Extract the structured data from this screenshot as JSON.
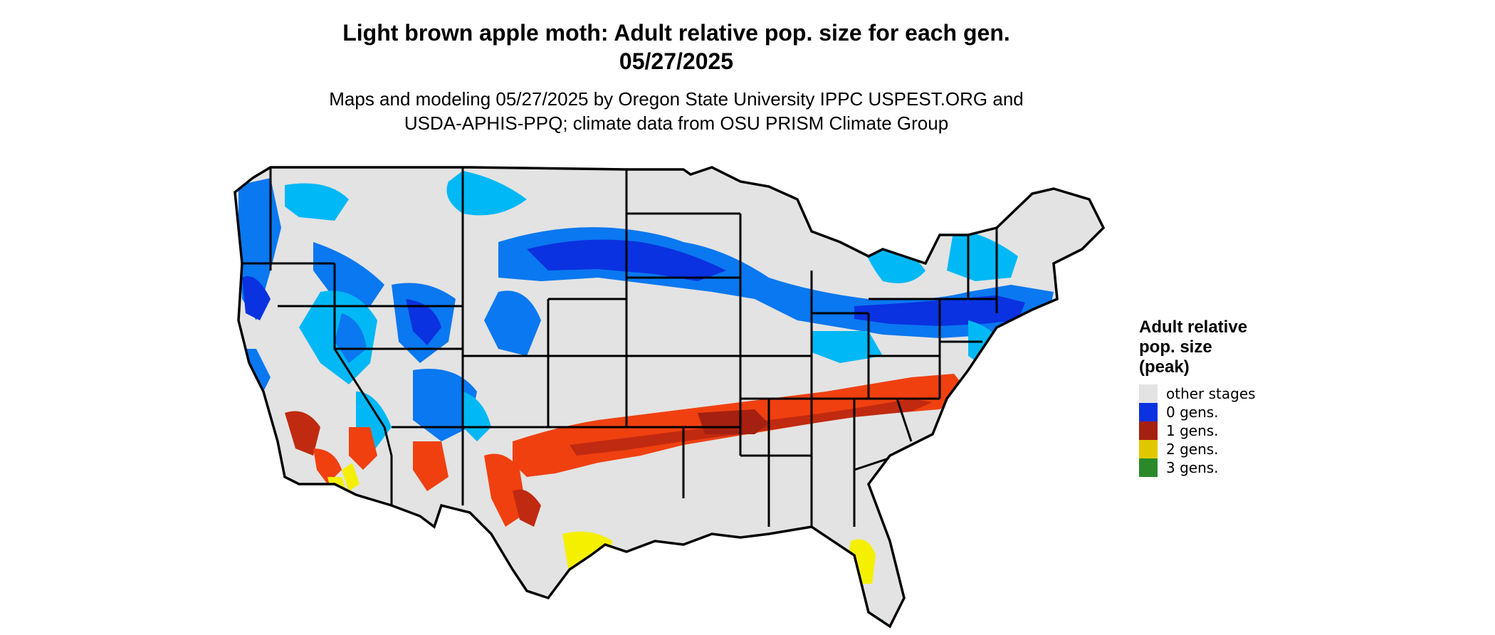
{
  "title": {
    "line1": "Light brown apple moth: Adult relative pop. size for each gen.",
    "line2": "05/27/2025"
  },
  "subtitle": {
    "line1": "Maps and modeling 05/27/2025 by Oregon State University IPPC USPEST.ORG and",
    "line2": "USDA-APHIS-PPQ; climate data from OSU PRISM Climate Group"
  },
  "legend": {
    "title_lines": [
      "Adult relative",
      "pop. size",
      "(peak)"
    ],
    "items": [
      {
        "label": "other stages",
        "color": "#e3e3e3"
      },
      {
        "label": "0 gens.",
        "color": "#0a32e0"
      },
      {
        "label": "1 gens.",
        "color": "#a52010"
      },
      {
        "label": "2 gens.",
        "color": "#e0c800"
      },
      {
        "label": "3 gens.",
        "color": "#2a8a2a"
      }
    ]
  },
  "colors": {
    "other": "#e3e3e3",
    "gen0_light": "#00b8f5",
    "gen0_mid": "#0a78f0",
    "gen0_dark": "#0a32e0",
    "gen1_light": "#f04010",
    "gen1_dark": "#c02a10",
    "gen2": "#f5f000",
    "gen3": "#33cc33",
    "border": "#000000"
  }
}
